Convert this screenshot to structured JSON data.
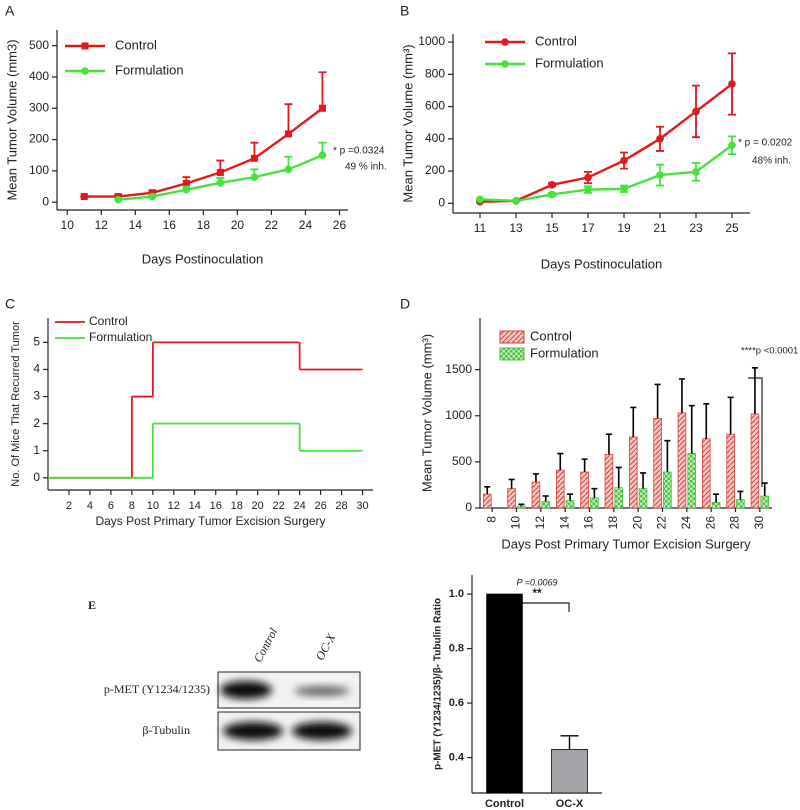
{
  "chart_data": [
    {
      "panel": "A",
      "type": "line",
      "xlabel": "Days Postinoculation",
      "ylabel": "Mean Tumor Volume (mm3)",
      "x": [
        11,
        13,
        15,
        17,
        19,
        21,
        23,
        25
      ],
      "xlim": [
        9.4,
        26.5
      ],
      "xticks": [
        10,
        12,
        14,
        16,
        18,
        20,
        22,
        24,
        26
      ],
      "ylim": [
        -25,
        550
      ],
      "yticks": [
        0,
        100,
        200,
        300,
        400,
        500
      ],
      "error_direction": "up",
      "series": [
        {
          "name": "Control",
          "color": "#e3171c",
          "marker": "square",
          "values": [
            18,
            18,
            30,
            60,
            95,
            140,
            218,
            300
          ],
          "errors": [
            0,
            5,
            8,
            20,
            38,
            50,
            95,
            115
          ]
        },
        {
          "name": "Formulation",
          "color": "#44e33c",
          "marker": "circle",
          "values": [
            null,
            8,
            18,
            40,
            62,
            80,
            105,
            150
          ],
          "errors": [
            null,
            5,
            5,
            10,
            15,
            25,
            40,
            40
          ]
        }
      ],
      "annotations": [
        "* p =0.0324",
        "49 % inh."
      ]
    },
    {
      "panel": "B",
      "type": "line",
      "xlabel": "Days Postinoculation",
      "ylabel": "Mean Tumor Volume (mm³)",
      "x": [
        11,
        13,
        15,
        17,
        19,
        21,
        23,
        25
      ],
      "xlim": [
        9.5,
        26
      ],
      "xticks": [
        11,
        13,
        15,
        17,
        19,
        21,
        23,
        25
      ],
      "ylim": [
        -60,
        1050
      ],
      "yticks": [
        0,
        200,
        400,
        600,
        800,
        1000
      ],
      "error_direction": "both",
      "series": [
        {
          "name": "Control",
          "color": "#e3171c",
          "marker": "circle",
          "values": [
            10,
            15,
            115,
            160,
            265,
            400,
            570,
            740
          ],
          "errors": [
            0,
            0,
            10,
            35,
            50,
            75,
            160,
            190
          ]
        },
        {
          "name": "Formulation",
          "color": "#44e33c",
          "marker": "circle",
          "values": [
            25,
            15,
            55,
            85,
            90,
            175,
            195,
            360
          ],
          "errors": [
            0,
            0,
            10,
            20,
            20,
            65,
            55,
            55
          ]
        }
      ],
      "annotations": [
        "* p = 0.0202",
        "48% inh."
      ]
    },
    {
      "panel": "C",
      "type": "step",
      "xlabel": "Days Post Primary Tumor Excision Surgery",
      "ylabel": "No. Of Mice That Recurred Tumor",
      "x": [
        0,
        8,
        10,
        24,
        30
      ],
      "xlim": [
        0,
        31
      ],
      "xticks": [
        2,
        4,
        6,
        8,
        10,
        12,
        14,
        16,
        18,
        20,
        22,
        24,
        26,
        28,
        30
      ],
      "ylim": [
        -0.45,
        5.9
      ],
      "yticks": [
        0,
        1,
        2,
        3,
        4,
        5
      ],
      "series": [
        {
          "name": "Control",
          "color": "#e3171c",
          "values": [
            0,
            3,
            5,
            4,
            4
          ]
        },
        {
          "name": "Formulation",
          "color": "#44e33c",
          "values": [
            0,
            0,
            2,
            1,
            1
          ]
        }
      ]
    },
    {
      "panel": "D",
      "type": "groupedbar",
      "xlabel": "Days Post Primary Tumor Excision Surgery",
      "ylabel": "Mean Tumor Volume (mm³)",
      "categories": [
        "8",
        "10",
        "12",
        "14",
        "16",
        "18",
        "20",
        "22",
        "24",
        "26",
        "28",
        "30"
      ],
      "ylim": [
        0,
        2060
      ],
      "yticks": [
        0,
        500,
        1000,
        1500
      ],
      "series": [
        {
          "name": "Control",
          "color": "#d9413b",
          "hatch": "diagonal",
          "values": [
            150,
            210,
            280,
            410,
            390,
            580,
            770,
            970,
            1030,
            750,
            800,
            1020
          ],
          "errors": [
            80,
            100,
            90,
            180,
            140,
            220,
            320,
            370,
            370,
            380,
            400,
            500
          ]
        },
        {
          "name": "Formulation",
          "color": "#49c23e",
          "hatch": "check",
          "values": [
            null,
            20,
            70,
            80,
            110,
            220,
            210,
            390,
            590,
            60,
            90,
            130
          ],
          "errors": [
            null,
            20,
            60,
            70,
            100,
            220,
            170,
            340,
            520,
            90,
            90,
            140
          ]
        }
      ],
      "annotations": [
        "****p <0.0001"
      ]
    },
    {
      "panel": "E",
      "type": "bar",
      "ylabel": "p-MET (Y1234/1235)/β- Tubulin Ratio",
      "categories": [
        "Control",
        "OC-X"
      ],
      "values": [
        1,
        0.43
      ],
      "errors": [
        null,
        0.05
      ],
      "colors": [
        "#000000",
        "#a3a3a8"
      ],
      "ylim": [
        0.27,
        1.07
      ],
      "yticks": [
        0.4,
        0.6,
        0.8,
        {
          "value": 1,
          "label": "1.0"
        }
      ],
      "annotations": [
        "P =0.0069",
        "**"
      ]
    }
  ],
  "blot": {
    "lanes": [
      "Control",
      "OC-X"
    ],
    "rows": [
      "p-MET (Y1234/1235)",
      "β-Tubulin"
    ]
  }
}
